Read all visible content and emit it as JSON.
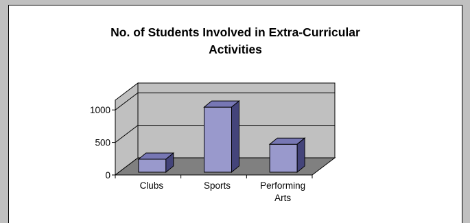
{
  "chart_data": {
    "type": "bar",
    "style": "3d-column",
    "title_lines": [
      "No. of Students Involved in Extra-Curricular",
      "Activities"
    ],
    "categories": [
      [
        "Clubs"
      ],
      [
        "Sports"
      ],
      [
        "Performing",
        "Arts"
      ]
    ],
    "values": [
      200,
      1000,
      430
    ],
    "yticks": [
      0,
      500,
      1000
    ],
    "ylim": [
      0,
      1150
    ],
    "grid": "horizontal",
    "legend": "none",
    "colors": {
      "bar_front": "#9999cc",
      "bar_top": "#7777b4",
      "bar_side": "#44447a",
      "back_wall": "#c0c0c0",
      "floor": "#808080",
      "outline": "#000000"
    }
  }
}
